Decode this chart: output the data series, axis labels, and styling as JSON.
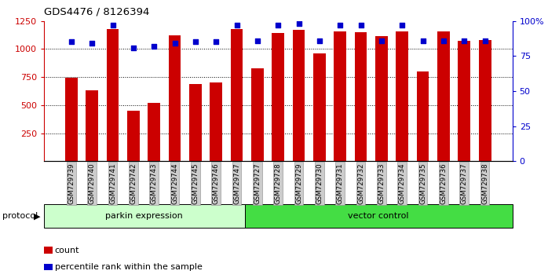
{
  "title": "GDS4476 / 8126394",
  "samples": [
    "GSM729739",
    "GSM729740",
    "GSM729741",
    "GSM729742",
    "GSM729743",
    "GSM729744",
    "GSM729745",
    "GSM729746",
    "GSM729747",
    "GSM729727",
    "GSM729728",
    "GSM729729",
    "GSM729730",
    "GSM729731",
    "GSM729732",
    "GSM729733",
    "GSM729734",
    "GSM729735",
    "GSM729736",
    "GSM729737",
    "GSM729738"
  ],
  "counts": [
    740,
    630,
    1175,
    450,
    520,
    1120,
    690,
    700,
    1175,
    830,
    1145,
    1170,
    960,
    1155,
    1150,
    1115,
    1155,
    800,
    1155,
    1070,
    1080
  ],
  "percentiles": [
    85,
    84,
    97,
    81,
    82,
    84,
    85,
    85,
    97,
    86,
    97,
    98,
    86,
    97,
    97,
    86,
    97,
    86,
    86,
    86,
    86
  ],
  "groups": [
    {
      "label": "parkin expression",
      "start": 0,
      "end": 9,
      "color": "#ccffcc"
    },
    {
      "label": "vector control",
      "start": 9,
      "end": 21,
      "color": "#44dd44"
    }
  ],
  "bar_color": "#cc0000",
  "dot_color": "#0000cc",
  "ylim_left": [
    0,
    1250
  ],
  "ylim_right": [
    0,
    100
  ],
  "yticks_left": [
    250,
    500,
    750,
    1000,
    1250
  ],
  "yticks_right": [
    0,
    25,
    50,
    75,
    100
  ],
  "ytick_right_labels": [
    "0",
    "25",
    "50",
    "75",
    "100%"
  ],
  "grid_values": [
    250,
    500,
    750,
    1000
  ],
  "bg_color": "#ffffff",
  "label_bg": "#cccccc",
  "legend_count_label": "count",
  "legend_pct_label": "percentile rank within the sample",
  "protocol_label": "protocol"
}
